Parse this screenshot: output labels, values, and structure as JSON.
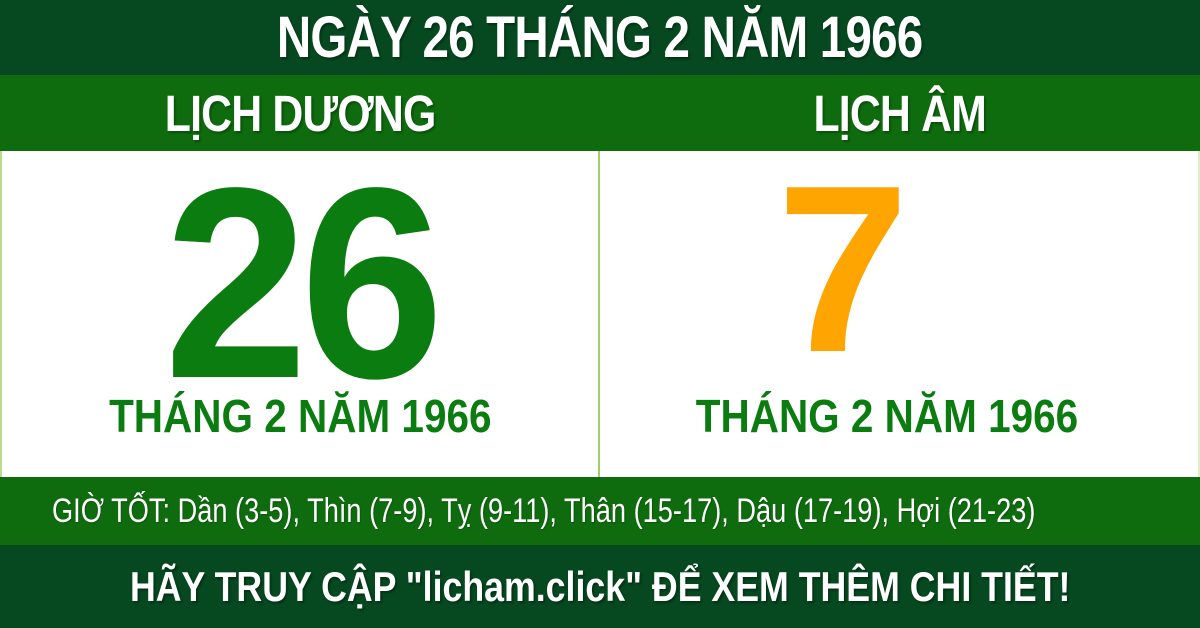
{
  "header": {
    "title": "NGÀY 26 THÁNG 2 NĂM 1966"
  },
  "calendars": {
    "solar": {
      "label": "LỊCH DƯƠNG",
      "day": "26",
      "month_year": "THÁNG 2 NĂM 1966"
    },
    "lunar": {
      "label": "LỊCH ÂM",
      "day": "7",
      "month_year": "THÁNG 2 NĂM 1966"
    }
  },
  "good_hours": {
    "text": "GIỜ TỐT: Dần (3-5), Thìn (7-9), Tỵ (9-11), Thân (15-17), Dậu (17-19), Hợi (21-23)"
  },
  "footer": {
    "text": "HÃY TRUY CẬP \"licham.click\" ĐỂ XEM THÊM CHI TIẾT!"
  },
  "colors": {
    "dark_green": "#06481F",
    "bright_green": "#0E6B0E",
    "day_green": "#0B7C10",
    "day_orange": "#FFA502",
    "divider_green": "#A2CE68",
    "text_white": "#FFFFFF"
  }
}
